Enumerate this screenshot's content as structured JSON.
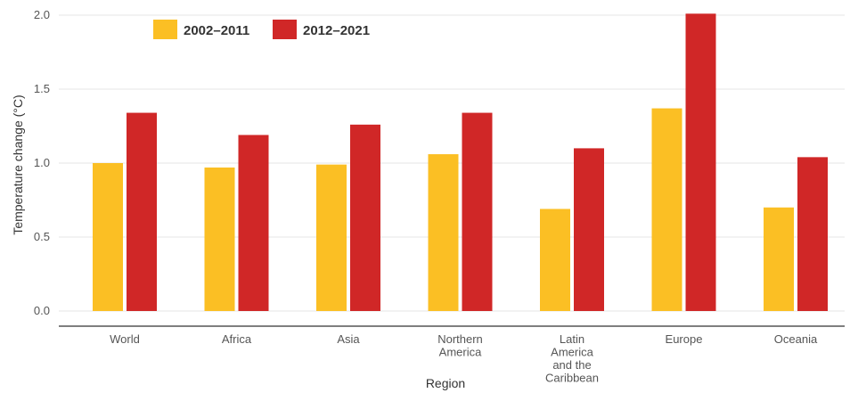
{
  "chart_data": {
    "type": "bar",
    "xlabel": "Region",
    "ylabel": "Temperature change (°C)",
    "ylim": [
      0,
      2.0
    ],
    "yticks": [
      "0.0",
      "0.5",
      "1.0",
      "1.5",
      "2.0"
    ],
    "grid": true,
    "legend_position": "top-left",
    "categories": [
      [
        "World"
      ],
      [
        "Africa"
      ],
      [
        "Asia"
      ],
      [
        "Northern",
        "America"
      ],
      [
        "Latin",
        "America",
        "and the",
        "Caribbean"
      ],
      [
        "Europe"
      ],
      [
        "Oceania"
      ]
    ],
    "series": [
      {
        "name": "2002–2011",
        "color": "#FBBF24",
        "values": [
          1.0,
          0.97,
          0.99,
          1.06,
          0.69,
          1.37,
          0.7
        ]
      },
      {
        "name": "2012–2021",
        "color": "#D02727",
        "values": [
          1.34,
          1.19,
          1.26,
          1.34,
          1.1,
          2.01,
          1.04
        ]
      }
    ]
  }
}
